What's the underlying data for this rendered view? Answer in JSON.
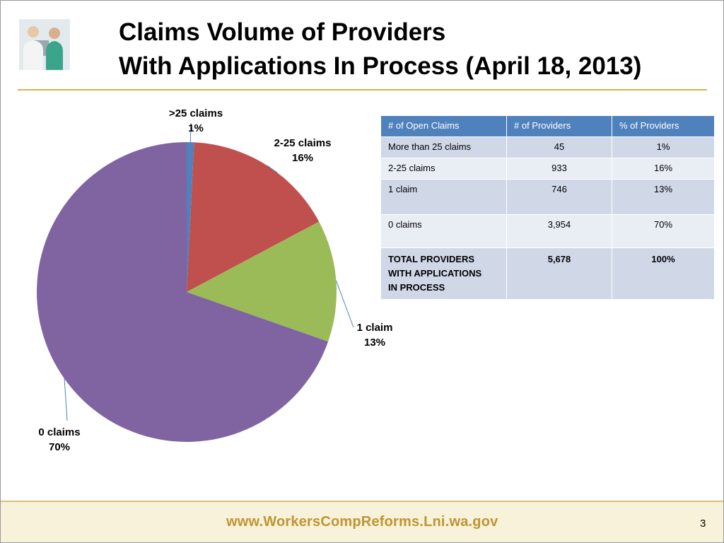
{
  "slide": {
    "title_line1": "Claims Volume of Providers",
    "title_line2": "With Applications In Process (April 18, 2013)",
    "footer_url": "www.WorkersCompReforms.Lni.wa.gov",
    "page_number": "3",
    "accent_color": "#d9b24a",
    "footer_text_color": "#bf9433",
    "photo_icon": "doctors-photo"
  },
  "chart_data": {
    "type": "pie",
    "slices": [
      {
        "label": ">25 claims",
        "pct": "1%",
        "value": 45,
        "color": "#4f81bd"
      },
      {
        "label": "2-25 claims",
        "pct": "16%",
        "value": 933,
        "color": "#c0504d"
      },
      {
        "label": "1 claim",
        "pct": "13%",
        "value": 746,
        "color": "#9bbb59"
      },
      {
        "label": "0 claims",
        "pct": "70%",
        "value": 3954,
        "color": "#8064a2"
      }
    ]
  },
  "table": {
    "headers": [
      "# of Open Claims",
      "# of Providers",
      "% of Providers"
    ],
    "rows": [
      [
        "More than 25 claims",
        "45",
        "1%"
      ],
      [
        "2-25 claims",
        "933",
        "16%"
      ],
      [
        "1 claim",
        "746",
        "13%"
      ],
      [
        "0 claims",
        "3,954",
        "70%"
      ]
    ],
    "total": {
      "label_lines": [
        "TOTAL PROVIDERS",
        "WITH APPLICATIONS",
        "IN PROCESS"
      ],
      "providers": "5,678",
      "percent": "100%"
    },
    "header_color": "#4f81bd"
  }
}
